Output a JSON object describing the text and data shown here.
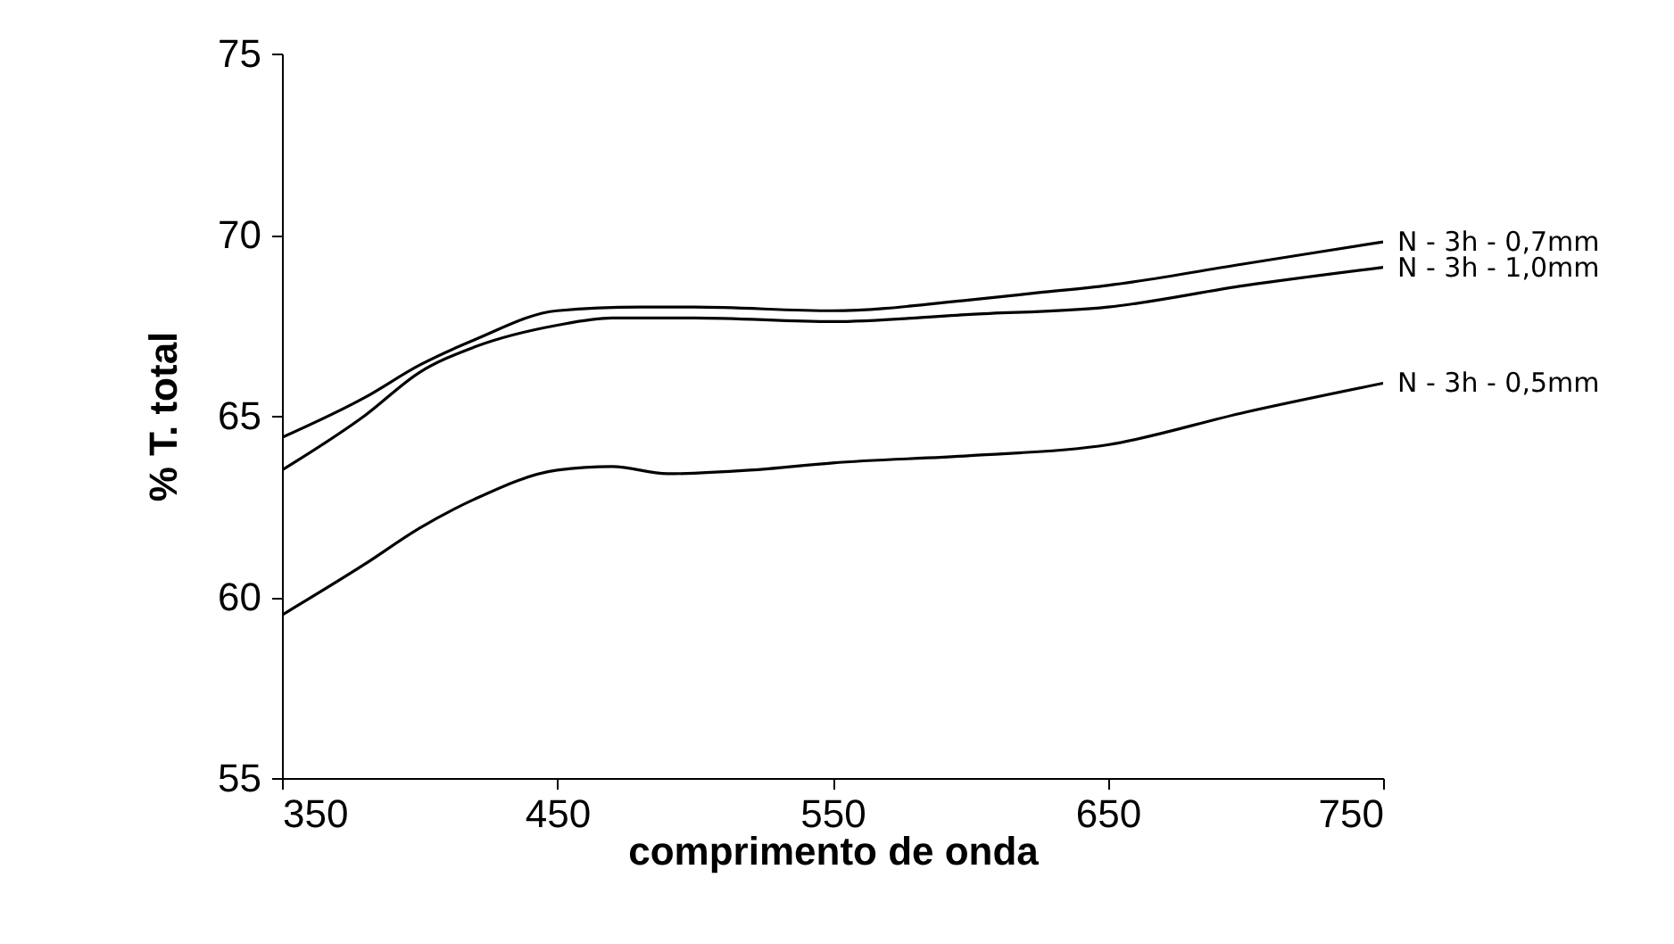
{
  "chart_data": {
    "type": "line",
    "xlabel": "comprimento de onda",
    "ylabel": "% T. total",
    "xlim": [
      350,
      750
    ],
    "xticks": [
      350,
      450,
      550,
      650,
      750
    ],
    "ylim": [
      55,
      75
    ],
    "yticks": [
      55,
      60,
      65,
      70,
      75
    ],
    "grid": false,
    "legend": false,
    "series": [
      {
        "name": "N - 3h - 0,7mm",
        "color": "#000000",
        "x": [
          350,
          380,
          400,
          420,
          450,
          480,
          500,
          550,
          600,
          625,
          650,
          700,
          750
        ],
        "values": [
          64.4,
          65.5,
          66.4,
          67.1,
          67.9,
          68.0,
          68.0,
          67.9,
          68.2,
          68.4,
          68.6,
          69.2,
          69.8
        ]
      },
      {
        "name": "N - 3h - 1,0mm",
        "color": "#000000",
        "x": [
          350,
          380,
          400,
          420,
          450,
          470,
          500,
          550,
          600,
          650,
          700,
          750
        ],
        "values": [
          63.5,
          65.0,
          66.2,
          66.9,
          67.5,
          67.7,
          67.7,
          67.6,
          67.8,
          68.0,
          68.6,
          69.1
        ]
      },
      {
        "name": "N - 3h - 0,5mm",
        "color": "#000000",
        "x": [
          350,
          380,
          400,
          420,
          450,
          470,
          490,
          520,
          550,
          600,
          650,
          700,
          750
        ],
        "values": [
          59.5,
          60.9,
          61.9,
          62.7,
          63.5,
          63.6,
          63.4,
          63.5,
          63.7,
          63.9,
          64.2,
          65.1,
          65.9
        ]
      }
    ]
  }
}
